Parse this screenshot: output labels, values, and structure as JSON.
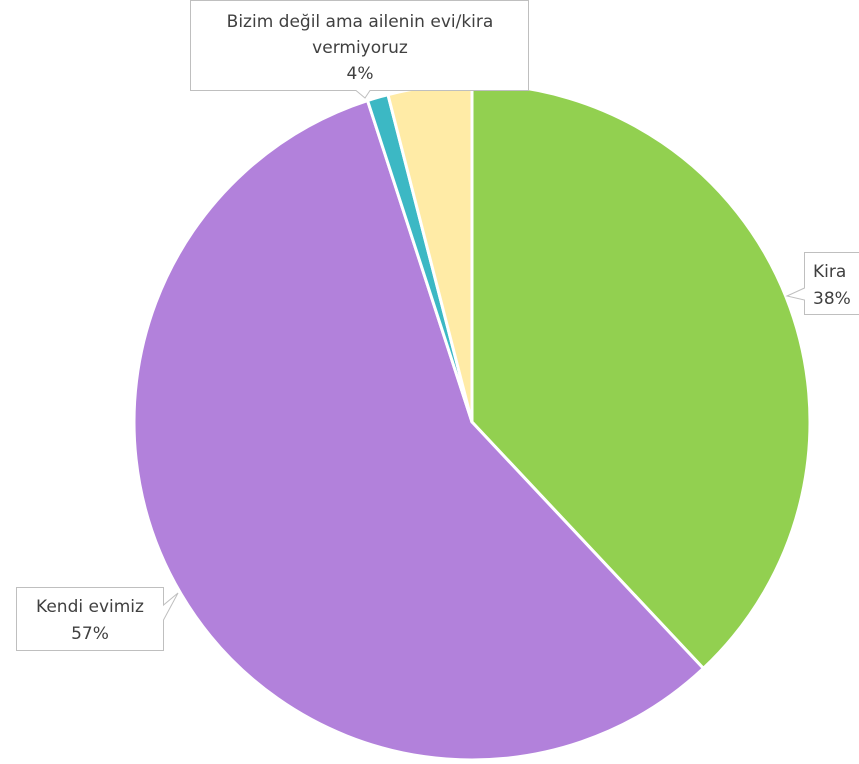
{
  "chart_data": {
    "type": "pie",
    "title": "",
    "slices": [
      {
        "label": "Kira",
        "value": 38,
        "display": "38%",
        "color": "#92d050"
      },
      {
        "label": "Kendi evimiz",
        "value": 57,
        "display": "57%",
        "color": "#b281db"
      },
      {
        "label": "",
        "value": 1,
        "display": "",
        "color": "#3cb8c4"
      },
      {
        "label": "Bizim değil ama ailenin evi/kira vermiyoruz",
        "label_lines": [
          "Bizim değil ama ailenin evi/kira",
          "vermiyoruz"
        ],
        "value": 4,
        "display": "4%",
        "color": "#ffeba6"
      }
    ],
    "legend": "none",
    "data_labels": "callouts"
  }
}
